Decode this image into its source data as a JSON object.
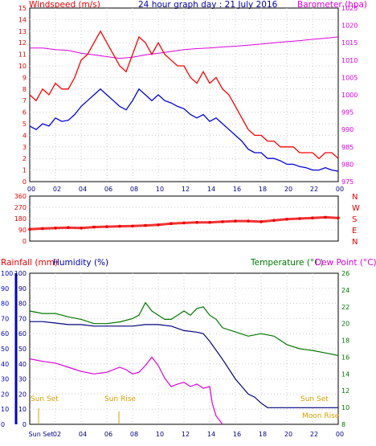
{
  "header": {
    "windspeed_label": "Windspeed (m/s)",
    "title": "24 hour graph day : 21 July 2016",
    "barometer_label": "Barometer (hpa)"
  },
  "lower_header": {
    "rainfall_label": "Rainfall (mm)",
    "humidity_label": "Humidity (%)",
    "temperature_label": "Temperature (°C)",
    "dewpoint_label": "Dew Point (°C)"
  },
  "colors": {
    "gust": "#ff0000",
    "wind": "#0000dd",
    "barometer": "#dd00dd",
    "direction": "#ee0000",
    "temperature": "#007700",
    "humidity": "#000080",
    "dewpoint": "#dd00dd",
    "sun_moon": "#e0b000",
    "rain_axis": "#0000cc"
  },
  "annotations": {
    "sun_set_left": "Sun Set",
    "sun_rise": "Sun Rise",
    "sun_set_right": "Sun Set",
    "moon_rise": "Moon Rise",
    "bottom_sun_set": "Sun Set"
  },
  "chart_data": [
    {
      "type": "line",
      "name": "wind",
      "x_ticks": [
        "00",
        "02",
        "04",
        "06",
        "08",
        "10",
        "12",
        "14",
        "16",
        "18",
        "20",
        "22",
        "00"
      ],
      "xlim": [
        0,
        24
      ],
      "ylim_left": [
        0,
        15
      ],
      "y_ticks_left": [
        "0",
        "1",
        "2",
        "3",
        "4",
        "5",
        "6",
        "7",
        "8",
        "9",
        "10",
        "11",
        "12",
        "13",
        "14",
        "15"
      ],
      "ylim_right": [
        975,
        1025
      ],
      "y_ticks_right": [
        "975",
        "980",
        "985",
        "990",
        "995",
        "1000",
        "1005",
        "1010",
        "1015",
        "1020",
        "1025"
      ],
      "series": [
        {
          "key": "gust",
          "x": [
            0,
            0.5,
            1,
            1.5,
            2,
            2.5,
            3,
            3.5,
            4,
            4.5,
            5,
            5.5,
            6,
            6.5,
            7,
            7.5,
            8,
            8.5,
            9,
            9.5,
            10,
            10.5,
            11,
            11.5,
            12,
            12.5,
            13,
            13.5,
            14,
            14.5,
            15,
            15.5,
            16,
            16.5,
            17,
            17.5,
            18,
            18.5,
            19,
            19.5,
            20,
            20.5,
            21,
            21.5,
            22,
            22.5,
            23,
            23.5,
            24
          ],
          "y": [
            7.5,
            7,
            8,
            7.5,
            8.5,
            8,
            8,
            9,
            10.5,
            11,
            12,
            13,
            12,
            11,
            10,
            9.5,
            11,
            12.5,
            12,
            11,
            12,
            11,
            10.5,
            10,
            10,
            9,
            8.5,
            9.5,
            8.5,
            9,
            8,
            7.5,
            6.5,
            5.5,
            4.5,
            4,
            4,
            3.5,
            3.5,
            3,
            3,
            3,
            2.5,
            2.5,
            2.5,
            2,
            2.5,
            2.5,
            2
          ]
        },
        {
          "key": "wind",
          "x": [
            0,
            0.5,
            1,
            1.5,
            2,
            2.5,
            3,
            3.5,
            4,
            4.5,
            5,
            5.5,
            6,
            6.5,
            7,
            7.5,
            8,
            8.5,
            9,
            9.5,
            10,
            10.5,
            11,
            11.5,
            12,
            12.5,
            13,
            13.5,
            14,
            14.5,
            15,
            15.5,
            16,
            16.5,
            17,
            17.5,
            18,
            18.5,
            19,
            19.5,
            20,
            20.5,
            21,
            21.5,
            22,
            22.5,
            23,
            23.5,
            24
          ],
          "y": [
            4.8,
            4.5,
            5,
            4.8,
            5.5,
            5.2,
            5.3,
            5.8,
            6.5,
            7,
            7.5,
            8,
            7.5,
            7,
            6.5,
            6.2,
            7,
            8,
            7.5,
            7,
            7.5,
            7,
            6.8,
            6.5,
            6.3,
            5.8,
            5.5,
            5.8,
            5.2,
            5.5,
            5,
            4.5,
            4,
            3.5,
            2.8,
            2.5,
            2.5,
            2,
            2,
            1.8,
            1.5,
            1.5,
            1.3,
            1.2,
            1,
            1,
            1.2,
            1,
            0.9
          ]
        },
        {
          "key": "barometer",
          "x": [
            0,
            1,
            2,
            3,
            4,
            5,
            6,
            7,
            8,
            9,
            10,
            11,
            12,
            13,
            14,
            15,
            16,
            17,
            18,
            19,
            20,
            21,
            22,
            23,
            24
          ],
          "y": [
            1013.5,
            1013.5,
            1013,
            1012.8,
            1012,
            1011.5,
            1011,
            1010.5,
            1010.8,
            1011.5,
            1012,
            1012.5,
            1013,
            1013.3,
            1013.5,
            1013.8,
            1014,
            1014.3,
            1014.6,
            1015,
            1015.3,
            1015.6,
            1016,
            1016.3,
            1016.7
          ]
        }
      ]
    },
    {
      "type": "scatter",
      "name": "wind_direction",
      "ylim": [
        0,
        360
      ],
      "y_ticks": [
        "0",
        "90",
        "180",
        "270",
        "360"
      ],
      "compass_labels": [
        "N",
        "W",
        "S",
        "E",
        "N"
      ],
      "x": [
        0,
        1,
        2,
        3,
        4,
        5,
        6,
        7,
        8,
        9,
        10,
        11,
        12,
        13,
        14,
        15,
        16,
        17,
        18,
        19,
        20,
        21,
        22,
        23,
        24
      ],
      "y": [
        95,
        100,
        105,
        108,
        105,
        112,
        115,
        118,
        120,
        125,
        130,
        140,
        145,
        150,
        150,
        155,
        160,
        160,
        155,
        165,
        175,
        180,
        185,
        190,
        185
      ]
    },
    {
      "type": "line",
      "name": "temperature_humidity",
      "ylim_rain": [
        0,
        100
      ],
      "y_ticks_rain": [
        "0",
        "10",
        "20",
        "30",
        "40",
        "50",
        "60",
        "70",
        "80",
        "90",
        "100"
      ],
      "ylim_humidity": [
        0,
        100
      ],
      "y_ticks_humidity": [
        "0",
        "10",
        "20",
        "30",
        "40",
        "50",
        "60",
        "70",
        "80",
        "90",
        "100"
      ],
      "ylim_temp": [
        8,
        26
      ],
      "y_ticks_temp": [
        "8",
        "10",
        "12",
        "14",
        "16",
        "18",
        "20",
        "22",
        "24",
        "26"
      ],
      "x_ticks": [
        "Sun Set",
        "02",
        "04",
        "06",
        "08",
        "10",
        "12",
        "14",
        "16",
        "18",
        "20",
        "22",
        "00"
      ],
      "series": [
        {
          "key": "temperature",
          "x": [
            0,
            1,
            2,
            3,
            4,
            5,
            6,
            7,
            8,
            8.5,
            9,
            9.5,
            10,
            10.5,
            11,
            11.5,
            12,
            12.5,
            13,
            13.5,
            14,
            14.5,
            15,
            16,
            17,
            18,
            19,
            20,
            21,
            22,
            23,
            24
          ],
          "y": [
            21.5,
            21.2,
            21.2,
            20.8,
            20.5,
            20,
            20,
            20.2,
            20.6,
            21,
            22.5,
            21.5,
            21,
            20.5,
            20.5,
            21,
            21.5,
            21,
            21.8,
            22,
            21,
            20.5,
            19.5,
            19,
            18.5,
            18.8,
            18.5,
            17.5,
            17,
            16.8,
            16.5,
            16.2
          ]
        },
        {
          "key": "humidity",
          "x": [
            0,
            1,
            2,
            3,
            4,
            5,
            6,
            7,
            8,
            9,
            10,
            11,
            12,
            13,
            13.5,
            14,
            15,
            16,
            16.5,
            17,
            17.5,
            18,
            18.5,
            19,
            20,
            21,
            22,
            23,
            24
          ],
          "y": [
            68,
            68,
            67,
            66,
            66,
            65,
            65,
            65,
            65,
            66,
            66,
            65,
            62,
            61,
            60,
            55,
            43,
            30,
            25,
            20,
            18,
            14,
            11,
            11,
            11,
            11,
            11,
            11,
            11
          ]
        },
        {
          "key": "dewpoint",
          "x": [
            0,
            1,
            2,
            3,
            4,
            5,
            6,
            7,
            7.5,
            8,
            8.5,
            9,
            9.5,
            10,
            10.5,
            11,
            11.5,
            12,
            12.5,
            13,
            13.5,
            14,
            14.2,
            14.5,
            15
          ],
          "y": [
            15.8,
            15.5,
            15.3,
            14.8,
            14.3,
            14,
            14.2,
            14.8,
            14.5,
            14,
            14.2,
            15,
            16,
            15,
            13.5,
            12.5,
            12.8,
            13,
            12.5,
            12.8,
            12.3,
            12.5,
            10.5,
            9,
            8
          ]
        }
      ]
    }
  ]
}
